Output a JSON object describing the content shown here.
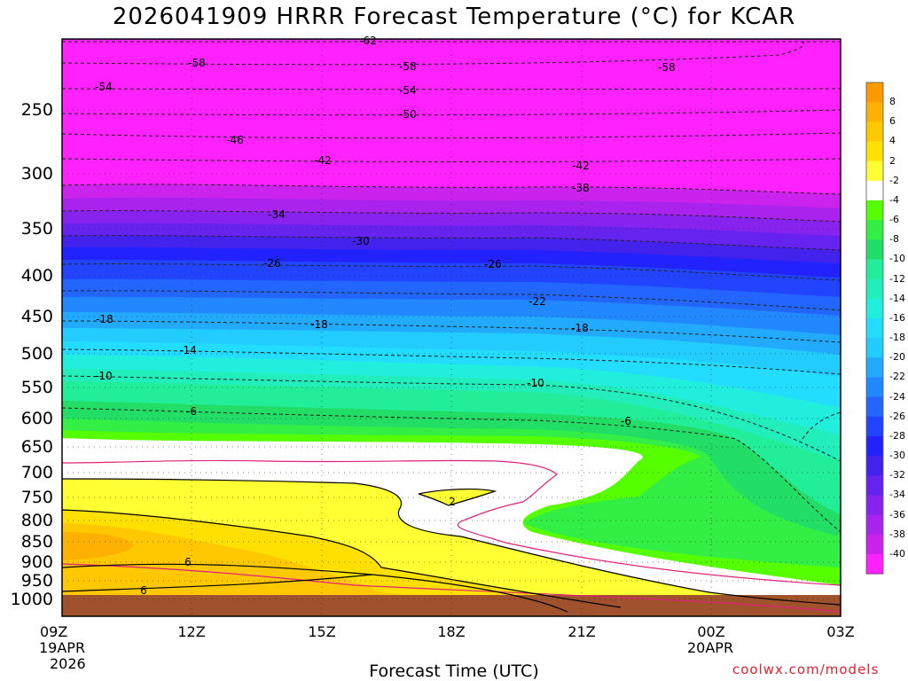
{
  "title": "2026041909 HRRR Forecast Temperature (°C) for KCAR",
  "xaxis_title": "Forecast Time (UTC)",
  "credit": "coolwx.com/models",
  "x_ticks": [
    {
      "label": "09Z",
      "sub1": "19APR",
      "sub2": "2026"
    },
    {
      "label": "12Z"
    },
    {
      "label": "15Z"
    },
    {
      "label": "18Z"
    },
    {
      "label": "21Z"
    },
    {
      "label": "00Z",
      "sub1": "20APR"
    },
    {
      "label": "03Z"
    }
  ],
  "y_ticks": [
    "250",
    "300",
    "350",
    "400",
    "450",
    "500",
    "550",
    "600",
    "650",
    "700",
    "750",
    "800",
    "850",
    "900",
    "950",
    "1000"
  ],
  "colorbar": {
    "labels": [
      "8",
      "6",
      "4",
      "2",
      "-2",
      "-4",
      "-6",
      "-8",
      "-10",
      "-12",
      "-14",
      "-16",
      "-18",
      "-20",
      "-22",
      "-24",
      "-26",
      "-28",
      "-30",
      "-32",
      "-34",
      "-36",
      "-38",
      "-40"
    ],
    "colors": [
      "#ff9900",
      "#ffb000",
      "#ffc800",
      "#ffe000",
      "#ffff33",
      "#ffffff",
      "#55ff00",
      "#33ee44",
      "#22dd66",
      "#22ee99",
      "#22eebb",
      "#22eedd",
      "#22ddff",
      "#22ccff",
      "#22aaff",
      "#2288ff",
      "#2266ff",
      "#2244ff",
      "#2222ff",
      "#4422ee",
      "#6622ee",
      "#8822ee",
      "#aa22ee",
      "#cc22ee",
      "#ff22ff"
    ]
  },
  "chart_data": {
    "type": "heatmap",
    "title": "2026041909 HRRR Forecast Temperature (°C) for KCAR",
    "xlabel": "Forecast Time (UTC)",
    "ylabel": "",
    "x": [
      "09Z",
      "12Z",
      "15Z",
      "18Z",
      "21Z",
      "00Z",
      "03Z"
    ],
    "y_levels_hPa": [
      250,
      300,
      350,
      400,
      450,
      500,
      550,
      600,
      650,
      700,
      750,
      800,
      850,
      900,
      950,
      1000
    ],
    "contour_labels": [
      "-62",
      "-58",
      "-54",
      "-50",
      "-46",
      "-42",
      "-38",
      "-34",
      "-30",
      "-26",
      "-22",
      "-18",
      "-14",
      "-10",
      "-6",
      "2",
      "6"
    ]
  },
  "contour_texts": [
    {
      "v": "-62"
    },
    {
      "v": "-58"
    },
    {
      "v": "-58"
    },
    {
      "v": "-58"
    },
    {
      "v": "-54"
    },
    {
      "v": "-54"
    },
    {
      "v": "-50"
    },
    {
      "v": "-46"
    },
    {
      "v": "-42"
    },
    {
      "v": "-42"
    },
    {
      "v": "-38"
    },
    {
      "v": "-34"
    },
    {
      "v": "-30"
    },
    {
      "v": "-26"
    },
    {
      "v": "-26"
    },
    {
      "v": "-22"
    },
    {
      "v": "-18"
    },
    {
      "v": "-18"
    },
    {
      "v": "-18"
    },
    {
      "v": "-14"
    },
    {
      "v": "-10"
    },
    {
      "v": "-10"
    },
    {
      "v": "-6"
    },
    {
      "v": "-6"
    },
    {
      "v": "2"
    },
    {
      "v": "6"
    },
    {
      "v": "6"
    }
  ]
}
